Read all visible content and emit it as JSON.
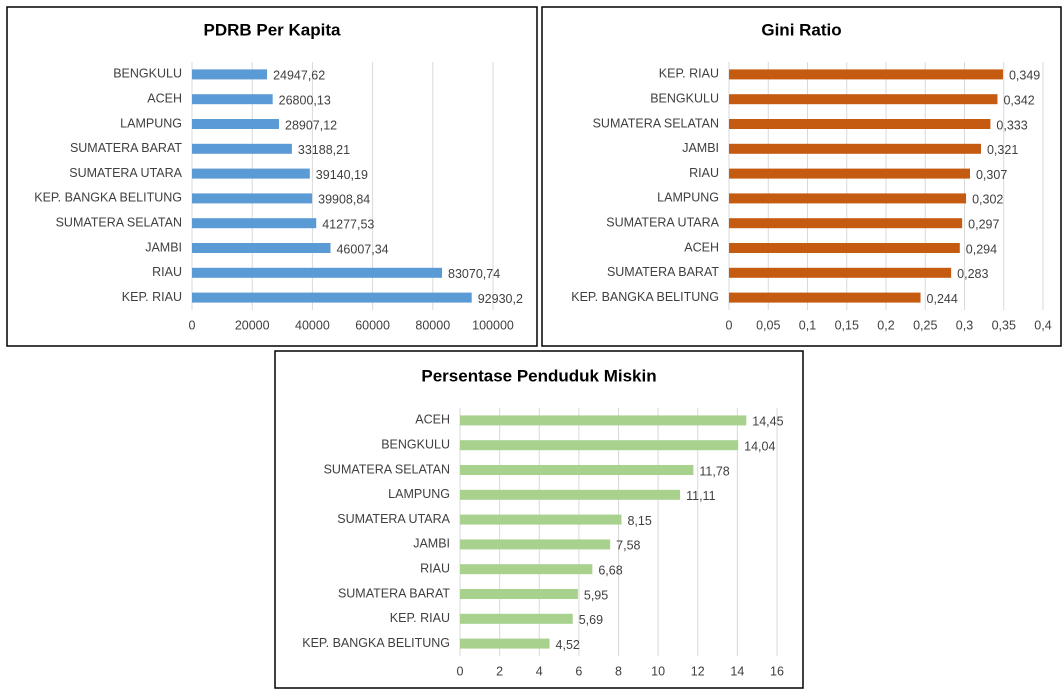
{
  "chart_data": [
    {
      "type": "bar",
      "orientation": "horizontal",
      "title": "PDRB Per Kapita",
      "color": "#5b9bd5",
      "grid": true,
      "categories": [
        "BENGKULU",
        "ACEH",
        "LAMPUNG",
        "SUMATERA BARAT",
        "SUMATERA UTARA",
        "KEP. BANGKA BELITUNG",
        "SUMATERA SELATAN",
        "JAMBI",
        "RIAU",
        "KEP. RIAU"
      ],
      "values": [
        24947.62,
        26800.13,
        28907.12,
        33188.21,
        39140.19,
        39908.84,
        41277.53,
        46007.34,
        83070.74,
        92930.2
      ],
      "value_labels": [
        "24947,62",
        "26800,13",
        "28907,12",
        "33188,21",
        "39140,19",
        "39908,84",
        "41277,53",
        "46007,34",
        "83070,74",
        "92930,2"
      ],
      "xlim": [
        0,
        100000
      ],
      "xticks": [
        0,
        20000,
        40000,
        60000,
        80000,
        100000
      ]
    },
    {
      "type": "bar",
      "orientation": "horizontal",
      "title": "Gini Ratio",
      "color": "#c55a11",
      "grid": true,
      "categories": [
        "KEP. RIAU",
        "BENGKULU",
        "SUMATERA SELATAN",
        "JAMBI",
        "RIAU",
        "LAMPUNG",
        "SUMATERA UTARA",
        "ACEH",
        "SUMATERA BARAT",
        "KEP. BANGKA BELITUNG"
      ],
      "values": [
        0.349,
        0.342,
        0.333,
        0.321,
        0.307,
        0.302,
        0.297,
        0.294,
        0.283,
        0.244
      ],
      "value_labels": [
        "0,349",
        "0,342",
        "0,333",
        "0,321",
        "0,307",
        "0,302",
        "0,297",
        "0,294",
        "0,283",
        "0,244"
      ],
      "xlim": [
        0,
        0.4
      ],
      "xticks": [
        0,
        {
          "value": 0.05,
          "label": "0,05"
        },
        {
          "value": 0.1,
          "label": "0,1"
        },
        {
          "value": 0.15,
          "label": "0,15"
        },
        {
          "value": 0.2,
          "label": "0,2"
        },
        {
          "value": 0.25,
          "label": "0,25"
        },
        {
          "value": 0.3,
          "label": "0,3"
        },
        {
          "value": 0.35,
          "label": "0,35"
        },
        {
          "value": 0.4,
          "label": "0,4"
        }
      ]
    },
    {
      "type": "bar",
      "orientation": "horizontal",
      "title": "Persentase Penduduk Miskin",
      "color": "#a9d18e",
      "grid": true,
      "categories": [
        "ACEH",
        "BENGKULU",
        "SUMATERA SELATAN",
        "LAMPUNG",
        "SUMATERA UTARA",
        "JAMBI",
        "RIAU",
        "SUMATERA BARAT",
        "KEP. RIAU",
        "KEP. BANGKA BELITUNG"
      ],
      "values": [
        14.45,
        14.04,
        11.78,
        11.11,
        8.15,
        7.58,
        6.68,
        5.95,
        5.69,
        4.52
      ],
      "value_labels": [
        "14,45",
        "14,04",
        "11,78",
        "11,11",
        "8,15",
        "7,58",
        "6,68",
        "5,95",
        "5,69",
        "4,52"
      ],
      "xlim": [
        0,
        16
      ],
      "xticks": [
        0,
        2,
        4,
        6,
        8,
        10,
        12,
        14,
        16
      ]
    }
  ]
}
